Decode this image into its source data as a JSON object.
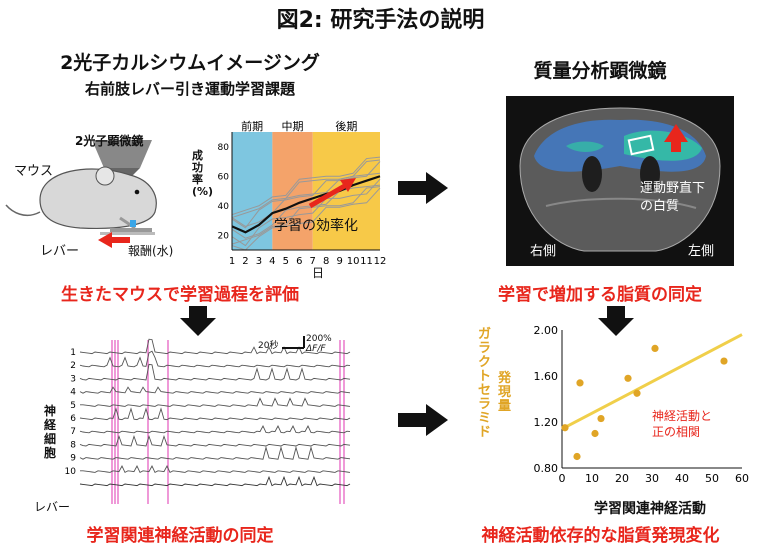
{
  "title": "図2: 研究手法の説明",
  "left": {
    "heading": "2光子カルシウムイメージング",
    "task": "右前肢レバー引き運動学習課題",
    "microscope_label": "2光子顕微鏡",
    "mouse_label": "マウス",
    "lever_label": "レバー",
    "reward_label": "報酬(水)",
    "conclusion_top": "生きたマウスで学習過程を評価",
    "conclusion_bottom": "学習関連神経活動の同定",
    "neuron_axis_label": "神経細胞",
    "lever_row_label": "レバー",
    "scale_time": "20秒",
    "scale_amp": "200%",
    "scale_unit": "ΔF/F",
    "neuron_ids": [
      "1",
      "2",
      "3",
      "4",
      "5",
      "6",
      "7",
      "8",
      "9",
      "10"
    ]
  },
  "learning_chart": {
    "type": "line",
    "ylabel": "成功率 (%)",
    "xlabel": "日",
    "x": [
      1,
      2,
      3,
      4,
      5,
      6,
      7,
      8,
      9,
      10,
      11,
      12
    ],
    "yticks": [
      "80",
      "60",
      "40",
      "20"
    ],
    "phases": [
      {
        "label": "前期",
        "from": 1,
        "to": 4,
        "color": "#7ec6e0"
      },
      {
        "label": "中期",
        "from": 4,
        "to": 7,
        "color": "#f4a36a"
      },
      {
        "label": "後期",
        "from": 7,
        "to": 12,
        "color": "#f7c948"
      }
    ],
    "mean_values": [
      26,
      22,
      27,
      35,
      38,
      42,
      45,
      48,
      50,
      54,
      57,
      60
    ],
    "annotation": "学習の効率化",
    "ylim": [
      10,
      90
    ]
  },
  "right": {
    "heading": "質量分析顕微鏡",
    "region_label_line1": "運動野直下",
    "region_label_line2": "の白質",
    "side_right": "右側",
    "side_left": "左側",
    "conclusion_top": "学習で増加する脂質の同定",
    "conclusion_bottom": "神経活動依存的な脂質発現変化"
  },
  "scatter_chart": {
    "type": "scatter",
    "ylabel_line1": "ガラクトセラミド",
    "ylabel_line2": "発現量",
    "xlabel": "学習関連神経活動",
    "xticks": [
      "0",
      "10",
      "20",
      "30",
      "40",
      "50",
      "60"
    ],
    "yticks": [
      "2.00",
      "1.60",
      "1.20",
      "0.80"
    ],
    "xlim": [
      0,
      60
    ],
    "ylim": [
      0.8,
      2.0
    ],
    "points": [
      [
        1,
        1.15
      ],
      [
        5,
        0.9
      ],
      [
        6,
        1.54
      ],
      [
        11,
        1.1
      ],
      [
        13,
        1.23
      ],
      [
        22,
        1.58
      ],
      [
        25,
        1.45
      ],
      [
        31,
        1.84
      ],
      [
        54,
        1.73
      ]
    ],
    "trend": [
      [
        0,
        1.14
      ],
      [
        60,
        1.96
      ]
    ],
    "annotation_line1": "神経活動と",
    "annotation_line2": "正の相関",
    "colors": {
      "points": "#e0a526",
      "trend": "#f0cf4a",
      "label": "#e0a526"
    }
  }
}
